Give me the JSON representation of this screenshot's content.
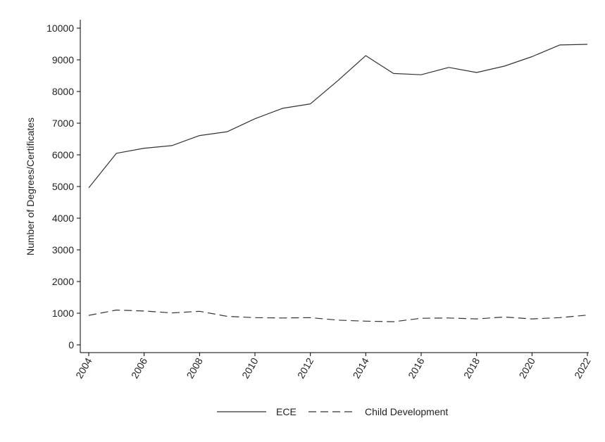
{
  "chart_data": {
    "type": "line",
    "title": "",
    "xlabel": "",
    "ylabel": "Number of Degrees/Certificates",
    "x": [
      2004,
      2005,
      2006,
      2007,
      2008,
      2009,
      2010,
      2011,
      2012,
      2013,
      2014,
      2015,
      2016,
      2017,
      2018,
      2019,
      2020,
      2021,
      2022
    ],
    "x_ticks": [
      2004,
      2006,
      2008,
      2010,
      2012,
      2014,
      2016,
      2018,
      2020,
      2022
    ],
    "y_ticks": [
      0,
      1000,
      2000,
      3000,
      4000,
      5000,
      6000,
      7000,
      8000,
      9000,
      10000
    ],
    "xlim": [
      2004,
      2022
    ],
    "ylim": [
      0,
      10000
    ],
    "grid": false,
    "legend_position": "bottom",
    "series": [
      {
        "name": "ECE",
        "style": "solid",
        "color": "#333333",
        "values": [
          4960,
          6050,
          6210,
          6290,
          6610,
          6730,
          7140,
          7470,
          7610,
          8350,
          9130,
          8570,
          8530,
          8760,
          8600,
          8800,
          9100,
          9470,
          9490
        ]
      },
      {
        "name": "Child Development",
        "style": "dashed",
        "color": "#333333",
        "values": [
          930,
          1100,
          1070,
          1010,
          1060,
          900,
          860,
          850,
          860,
          780,
          750,
          730,
          840,
          850,
          820,
          880,
          820,
          860,
          940
        ]
      }
    ]
  }
}
